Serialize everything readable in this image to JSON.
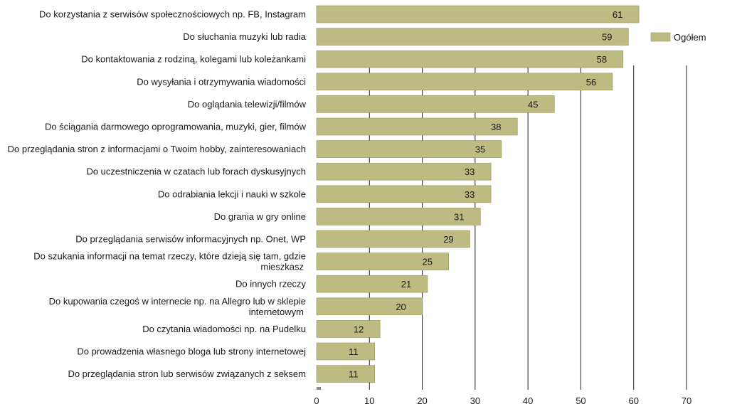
{
  "chart_data": {
    "type": "bar",
    "orientation": "horizontal",
    "categories": [
      [
        "Do korzystania z serwisów społecznościowych np. FB, Instagram"
      ],
      [
        "Do słuchania muzyki lub radia"
      ],
      [
        "Do kontaktowania z rodziną, kolegami lub koleżankami"
      ],
      [
        "Do wysyłania i otrzymywania wiadomości"
      ],
      [
        "Do oglądania telewizji/filmów"
      ],
      [
        "Do ściągania darmowego oprogramowania, muzyki, gier, filmów"
      ],
      [
        "Do przeglądania stron z informacjami o Twoim hobby, zainteresowaniach"
      ],
      [
        "Do uczestniczenia w  czatach lub forach dyskusyjnych"
      ],
      [
        "Do odrabiania lekcji i nauki w szkole"
      ],
      [
        "Do grania w gry online"
      ],
      [
        "Do przeglądania serwisów informacyjnych np. Onet, WP"
      ],
      [
        "Do szukania informacji na temat rzeczy, które dzieją się tam, gdzie",
        "mieszkasz"
      ],
      [
        "Do innych rzeczy"
      ],
      [
        "Do kupowania czegoś  w internecie np. na Allegro lub w sklepie",
        "internetowym"
      ],
      [
        "Do czytania wiadomości np. na Pudelku"
      ],
      [
        "Do prowadzenia własnego bloga lub strony internetowej"
      ],
      [
        "Do przeglądania stron lub serwisów  związanych z seksem"
      ]
    ],
    "series": [
      {
        "name": "Ogółem",
        "values": [
          61,
          59,
          58,
          56,
          45,
          38,
          35,
          33,
          33,
          31,
          29,
          25,
          21,
          20,
          12,
          11,
          11
        ]
      }
    ],
    "xlim": [
      0,
      70
    ],
    "xticks": [
      0,
      10,
      20,
      30,
      40,
      50,
      60,
      70
    ],
    "grid": "vertical",
    "legend_position": "top-right",
    "colors": {
      "bar": "#bdbb82",
      "bar_border": "#9a9760",
      "grid": "#222222",
      "text": "#1a1a1a"
    }
  }
}
